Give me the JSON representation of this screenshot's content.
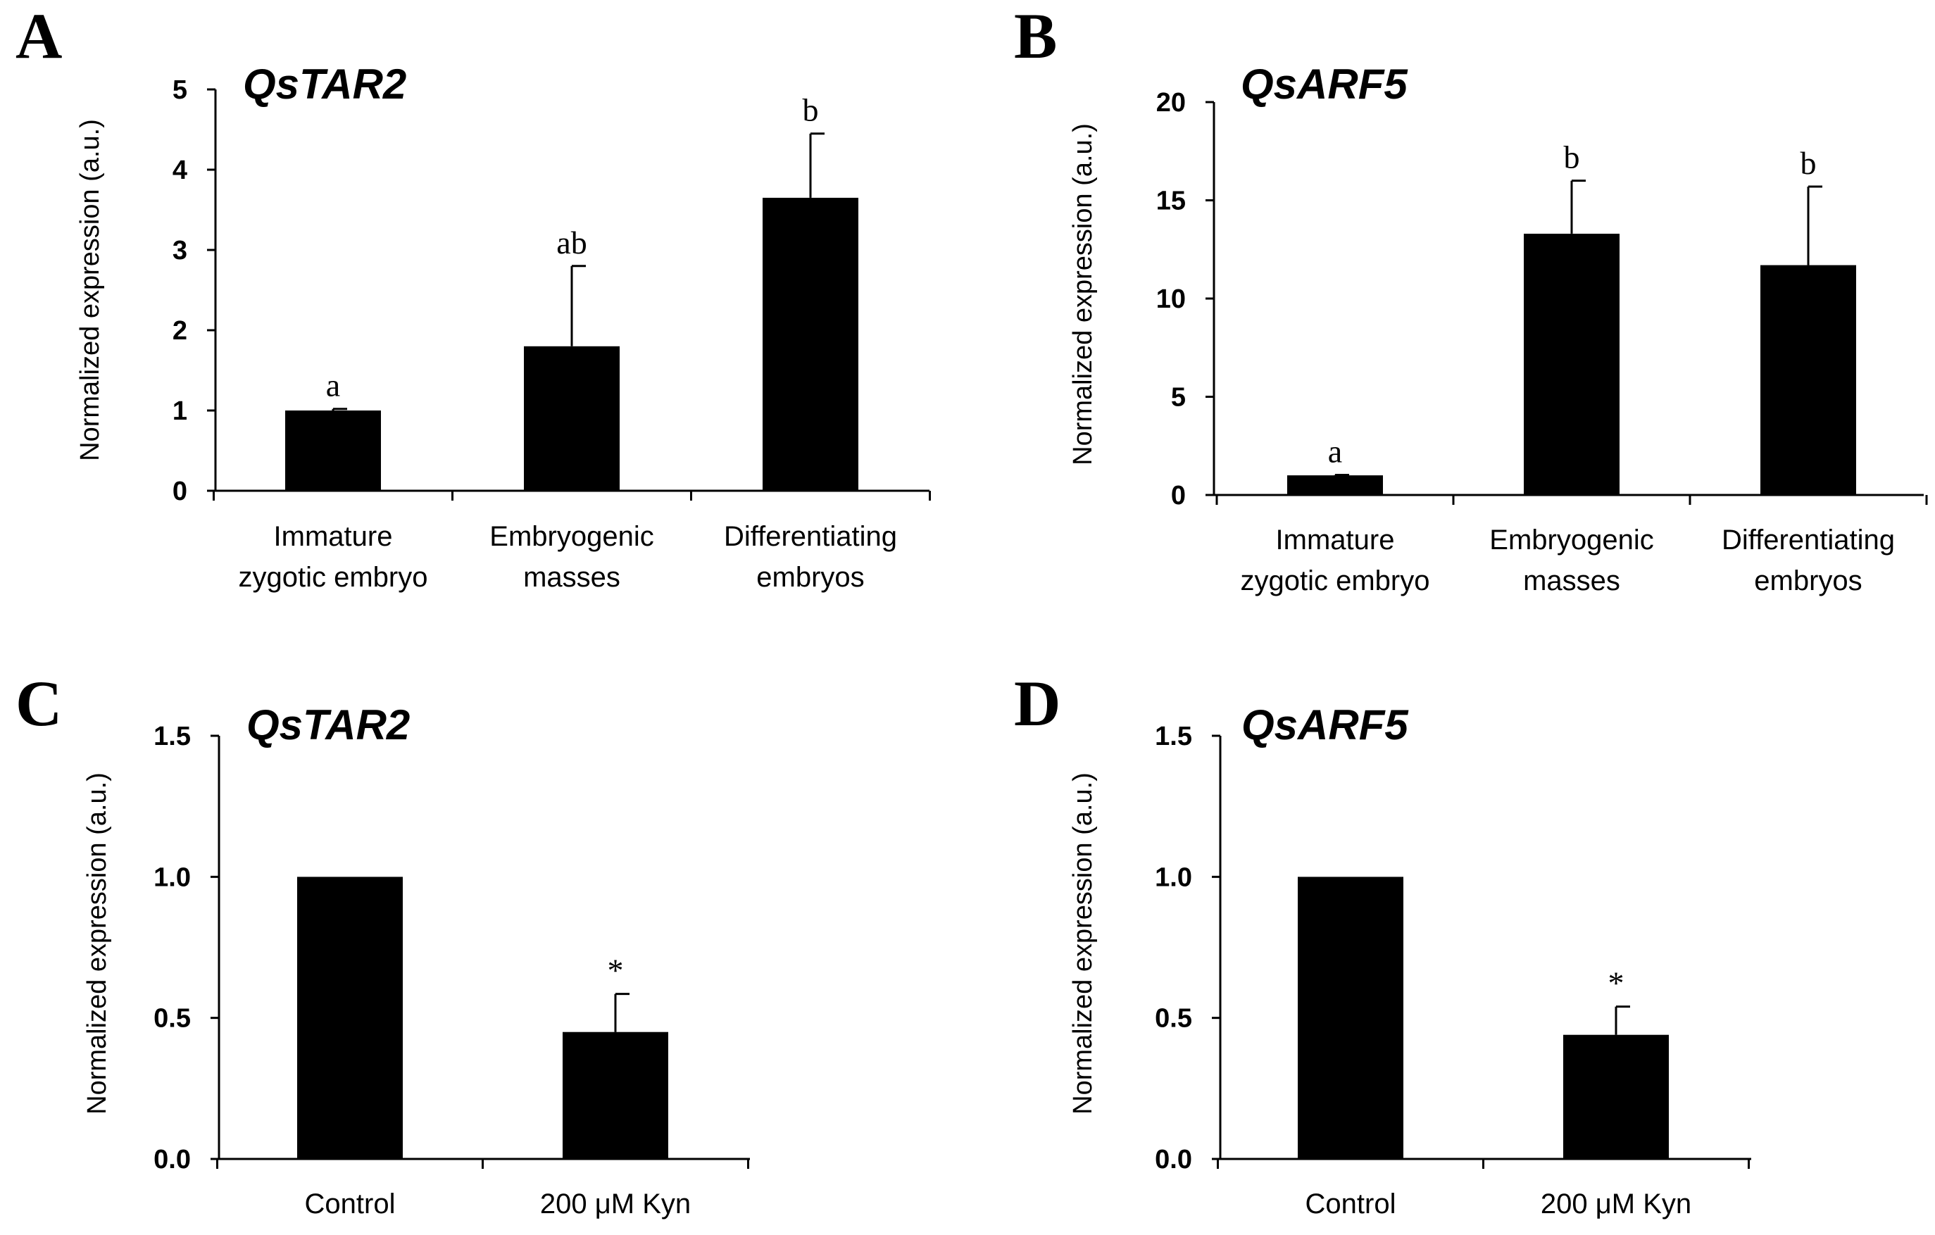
{
  "chart_data": [
    {
      "panel": "A",
      "type": "bar",
      "title": "QsTAR2",
      "ylabel": "Normalized expression (a.u.)",
      "xlabel": "",
      "categories": [
        [
          "Immature",
          "zygotic embryo"
        ],
        [
          "Embryogenic",
          "masses"
        ],
        [
          "Differentiating",
          "embryos"
        ]
      ],
      "values": [
        1.0,
        1.8,
        3.65
      ],
      "errors": [
        0.02,
        1.0,
        0.8
      ],
      "significance": [
        "a",
        "ab",
        "b"
      ],
      "ylim": [
        0,
        5
      ],
      "yticks": [
        "0",
        "1",
        "2",
        "3",
        "4",
        "5"
      ],
      "ytick_values": [
        0,
        1,
        2,
        3,
        4,
        5
      ]
    },
    {
      "panel": "B",
      "type": "bar",
      "title": "QsARF5",
      "ylabel": "Normalized expression (a.u.)",
      "xlabel": "",
      "categories": [
        [
          "Immature",
          "zygotic embryo"
        ],
        [
          "Embryogenic",
          "masses"
        ],
        [
          "Differentiating",
          "embryos"
        ]
      ],
      "values": [
        1.0,
        13.3,
        11.7
      ],
      "errors": [
        0.02,
        2.7,
        4.0
      ],
      "significance": [
        "a",
        "b",
        "b"
      ],
      "ylim": [
        0,
        20
      ],
      "yticks": [
        "0",
        "5",
        "10",
        "15",
        "20"
      ],
      "ytick_values": [
        0,
        5,
        10,
        15,
        20
      ]
    },
    {
      "panel": "C",
      "type": "bar",
      "title": "QsTAR2",
      "ylabel": "Normalized expression  (a.u.)",
      "xlabel": "",
      "categories": [
        [
          "Control"
        ],
        [
          "200 μM Kyn"
        ]
      ],
      "values": [
        1.0,
        0.45
      ],
      "errors": [
        0.0,
        0.135
      ],
      "significance": [
        "",
        "*"
      ],
      "ylim": [
        0,
        1.5
      ],
      "yticks": [
        "0.0",
        "0.5",
        "1.0",
        "1.5"
      ],
      "ytick_values": [
        0,
        0.5,
        1.0,
        1.5
      ]
    },
    {
      "panel": "D",
      "type": "bar",
      "title": "QsARF5",
      "ylabel": "Normalized expression (a.u.)",
      "xlabel": "",
      "categories": [
        [
          "Control"
        ],
        [
          "200 μM Kyn"
        ]
      ],
      "values": [
        1.0,
        0.44
      ],
      "errors": [
        0.0,
        0.1
      ],
      "significance": [
        "",
        "*"
      ],
      "ylim": [
        0,
        1.5
      ],
      "yticks": [
        "0.0",
        "0.5",
        "1.0",
        "1.5"
      ],
      "ytick_values": [
        0,
        0.5,
        1.0,
        1.5
      ]
    }
  ]
}
